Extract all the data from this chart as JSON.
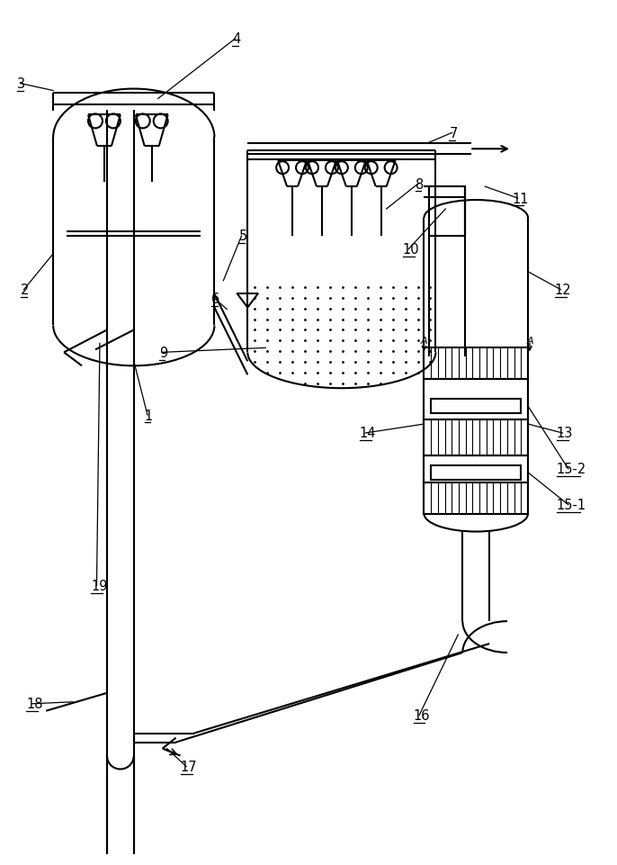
{
  "fig_width": 6.86,
  "fig_height": 9.62,
  "dpi": 100,
  "line_color": "#000000",
  "bg_color": "#ffffff",
  "line_width": 1.5
}
